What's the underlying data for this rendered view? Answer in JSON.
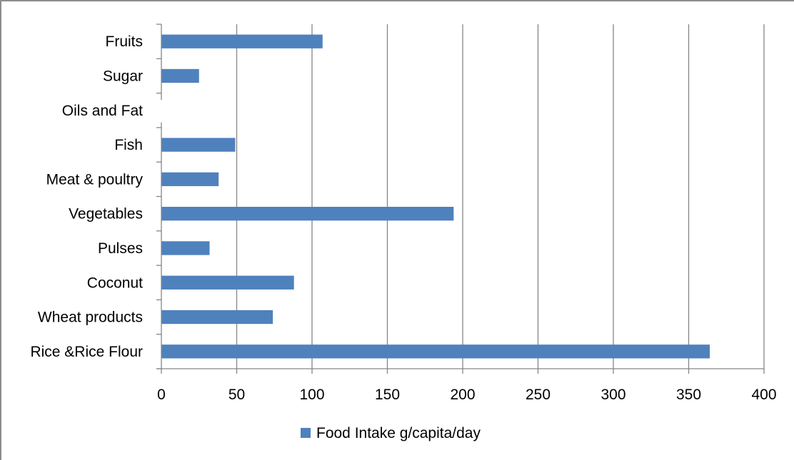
{
  "chart_data": {
    "type": "bar",
    "orientation": "horizontal",
    "categories": [
      "Rice &Rice Flour",
      "Wheat products",
      "Coconut",
      "Pulses",
      "Vegetables",
      "Meat & poultry",
      "Fish",
      "Oils and Fat",
      "Sugar",
      "Fruits"
    ],
    "series": [
      {
        "name": "Food Intake g/capita/day",
        "values": [
          364,
          74,
          88,
          32,
          194,
          38,
          49,
          null,
          25,
          107
        ]
      }
    ],
    "xlim": [
      0,
      400
    ],
    "xticks": [
      "0",
      "50",
      "100",
      "150",
      "200",
      "250",
      "300",
      "350",
      "400"
    ],
    "grid": "vertical",
    "legend_position": "bottom",
    "colors": {
      "bar": "#4f81bd",
      "grid": "#868686",
      "axis": "#868686",
      "border": "#8c8c8c"
    }
  }
}
